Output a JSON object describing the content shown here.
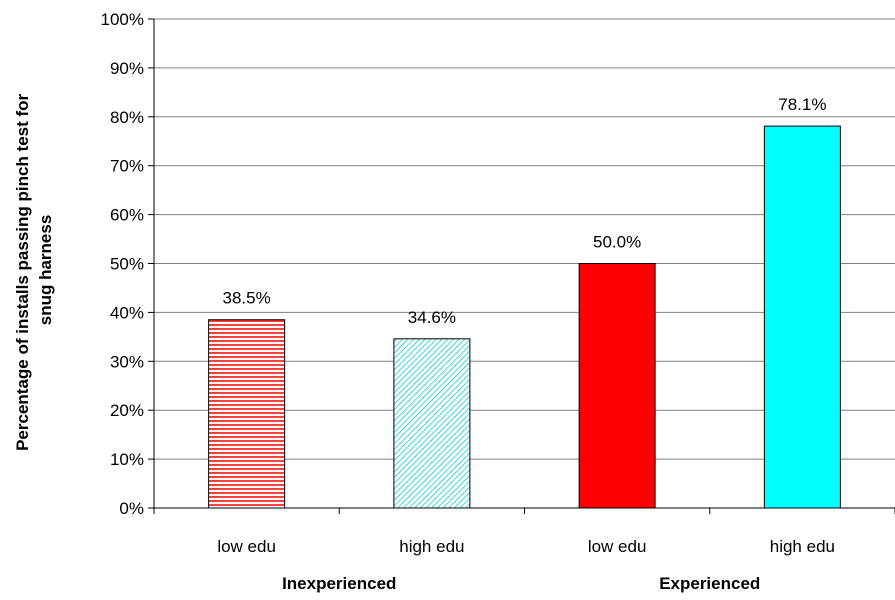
{
  "chart_data": {
    "type": "bar",
    "ylabel_lines": [
      "Percentage of installs passing pinch test for",
      "snug harness"
    ],
    "ylim": [
      0,
      100
    ],
    "yticks": [
      "0%",
      "10%",
      "20%",
      "30%",
      "40%",
      "50%",
      "60%",
      "70%",
      "80%",
      "90%",
      "100%"
    ],
    "grid": true,
    "categories": [
      "low edu",
      "high edu",
      "low edu",
      "high edu"
    ],
    "groups": [
      "Inexperienced",
      "Experienced"
    ],
    "values": [
      38.5,
      34.6,
      50.0,
      78.1
    ],
    "value_labels": [
      "38.5%",
      "34.6%",
      "50.0%",
      "78.1%"
    ],
    "bar_styles": [
      "red-hatched-horizontal",
      "cyan-hatched-diagonal",
      "red-solid",
      "cyan-solid"
    ],
    "colors": {
      "red": "#ff0000",
      "cyan": "#00ffff"
    }
  }
}
